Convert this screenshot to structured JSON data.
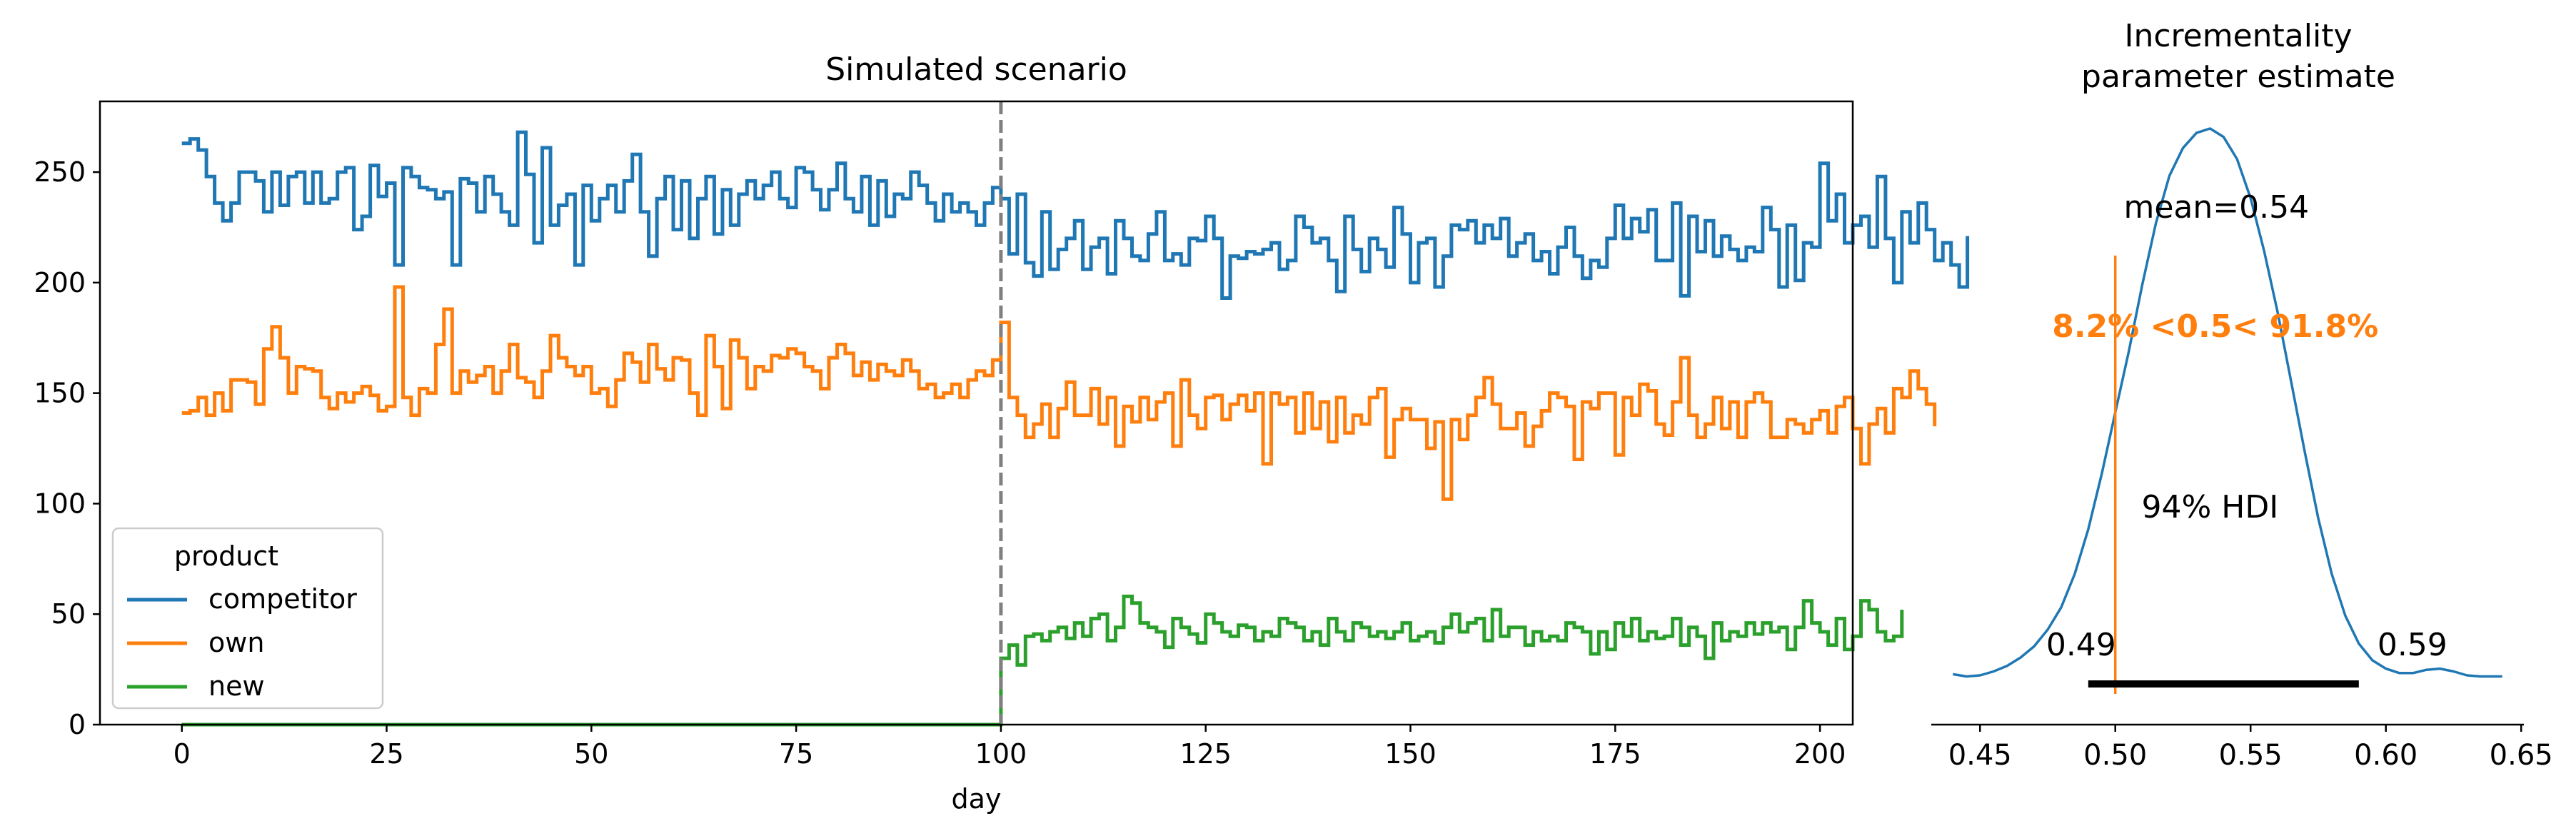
{
  "colors": {
    "competitor": "#1f77b4",
    "own": "#ff7f0e",
    "new": "#2ca02c",
    "vline": "#808080",
    "hdi": "#000000",
    "ref_text": "#ff7f0e"
  },
  "chart_data": [
    {
      "type": "line",
      "drawstyle": "steps",
      "title": "Simulated scenario",
      "xlabel": "day",
      "ylabel": "",
      "xlim": [
        -10,
        204
      ],
      "ylim": [
        0,
        282
      ],
      "xticks": [
        0,
        25,
        50,
        75,
        100,
        125,
        150,
        175,
        200
      ],
      "yticks": [
        0,
        50,
        100,
        150,
        200,
        250
      ],
      "grid": false,
      "intervention_day": 100,
      "legend": {
        "title": "product",
        "position": "lower-left"
      },
      "series": [
        {
          "name": "competitor",
          "x_start": 0,
          "values": [
            263,
            265,
            260,
            248,
            236,
            228,
            236,
            250,
            250,
            246,
            232,
            250,
            235,
            248,
            250,
            236,
            250,
            236,
            238,
            250,
            252,
            224,
            230,
            253,
            239,
            245,
            208,
            252,
            248,
            243,
            242,
            238,
            241,
            208,
            247,
            245,
            232,
            248,
            240,
            232,
            226,
            268,
            249,
            218,
            261,
            226,
            235,
            240,
            208,
            244,
            228,
            238,
            244,
            232,
            246,
            258,
            232,
            212,
            238,
            248,
            224,
            246,
            220,
            238,
            248,
            222,
            242,
            226,
            240,
            246,
            238,
            244,
            250,
            238,
            234,
            252,
            250,
            242,
            233,
            242,
            254,
            238,
            232,
            248,
            226,
            246,
            230,
            240,
            238,
            250,
            244,
            236,
            228,
            240,
            232,
            236,
            232,
            226,
            236,
            243,
            238,
            213,
            240,
            209,
            203,
            232,
            206,
            215,
            220,
            228,
            206,
            216,
            220,
            204,
            228,
            220,
            212,
            210,
            222,
            232,
            210,
            213,
            208,
            220,
            219,
            230,
            220,
            193,
            212,
            211,
            214,
            213,
            215,
            218,
            206,
            210,
            230,
            225,
            218,
            220,
            210,
            196,
            230,
            215,
            205,
            220,
            215,
            207,
            234,
            222,
            200,
            218,
            220,
            198,
            212,
            226,
            224,
            228,
            218,
            226,
            220,
            229,
            212,
            218,
            222,
            210,
            214,
            204,
            216,
            225,
            212,
            202,
            210,
            207,
            220,
            235,
            220,
            229,
            223,
            233,
            210,
            210,
            236,
            194,
            230,
            214,
            228,
            212,
            221,
            215,
            210,
            216,
            214,
            234,
            224,
            198,
            226,
            201,
            218,
            216,
            254,
            228,
            240,
            218,
            226,
            230,
            216,
            248,
            220,
            200,
            232,
            218,
            236,
            224,
            210,
            218,
            208,
            198,
            221
          ]
        },
        {
          "name": "own",
          "x_start": 0,
          "values": [
            141,
            142,
            148,
            140,
            150,
            142,
            156,
            156,
            155,
            145,
            170,
            180,
            166,
            150,
            162,
            161,
            160,
            148,
            143,
            150,
            146,
            150,
            153,
            149,
            142,
            144,
            198,
            148,
            140,
            152,
            150,
            172,
            188,
            150,
            160,
            155,
            158,
            162,
            150,
            160,
            172,
            157,
            155,
            148,
            160,
            176,
            166,
            162,
            158,
            162,
            150,
            152,
            144,
            156,
            168,
            164,
            155,
            172,
            161,
            156,
            166,
            165,
            150,
            140,
            176,
            162,
            143,
            174,
            166,
            152,
            162,
            160,
            167,
            166,
            170,
            168,
            162,
            160,
            152,
            166,
            172,
            168,
            158,
            164,
            156,
            163,
            160,
            158,
            165,
            160,
            152,
            154,
            148,
            150,
            154,
            148,
            156,
            160,
            158,
            165,
            182,
            148,
            140,
            130,
            136,
            145,
            130,
            143,
            155,
            140,
            140,
            152,
            136,
            148,
            126,
            144,
            137,
            148,
            138,
            146,
            150,
            126,
            156,
            140,
            134,
            148,
            149,
            138,
            145,
            149,
            142,
            150,
            118,
            150,
            145,
            148,
            132,
            150,
            134,
            146,
            128,
            148,
            132,
            140,
            136,
            148,
            152,
            121,
            138,
            143,
            138,
            138,
            125,
            137,
            102,
            138,
            129,
            140,
            148,
            157,
            145,
            134,
            134,
            141,
            126,
            135,
            142,
            150,
            148,
            144,
            120,
            146,
            143,
            150,
            150,
            122,
            148,
            140,
            154,
            151,
            136,
            131,
            146,
            166,
            140,
            130,
            136,
            148,
            134,
            146,
            130,
            146,
            150,
            146,
            130,
            130,
            138,
            136,
            132,
            138,
            142,
            132,
            144,
            148,
            134,
            118,
            136,
            143,
            132,
            152,
            148,
            160,
            152,
            145,
            135
          ]
        },
        {
          "name": "new",
          "x_start": 0,
          "values": [
            0,
            0,
            0,
            0,
            0,
            0,
            0,
            0,
            0,
            0,
            0,
            0,
            0,
            0,
            0,
            0,
            0,
            0,
            0,
            0,
            0,
            0,
            0,
            0,
            0,
            0,
            0,
            0,
            0,
            0,
            0,
            0,
            0,
            0,
            0,
            0,
            0,
            0,
            0,
            0,
            0,
            0,
            0,
            0,
            0,
            0,
            0,
            0,
            0,
            0,
            0,
            0,
            0,
            0,
            0,
            0,
            0,
            0,
            0,
            0,
            0,
            0,
            0,
            0,
            0,
            0,
            0,
            0,
            0,
            0,
            0,
            0,
            0,
            0,
            0,
            0,
            0,
            0,
            0,
            0,
            0,
            0,
            0,
            0,
            0,
            0,
            0,
            0,
            0,
            0,
            0,
            0,
            0,
            0,
            0,
            0,
            0,
            0,
            0,
            0,
            30,
            36,
            27,
            40,
            41,
            38,
            42,
            44,
            39,
            46,
            40,
            48,
            50,
            38,
            44,
            58,
            55,
            46,
            44,
            42,
            35,
            48,
            44,
            41,
            37,
            50,
            46,
            42,
            40,
            45,
            44,
            38,
            42,
            40,
            48,
            46,
            44,
            38,
            42,
            36,
            48,
            42,
            38,
            46,
            44,
            40,
            42,
            39,
            42,
            46,
            38,
            40,
            42,
            37,
            44,
            50,
            42,
            46,
            48,
            38,
            52,
            40,
            44,
            44,
            36,
            42,
            38,
            40,
            38,
            46,
            44,
            42,
            32,
            42,
            34,
            46,
            40,
            48,
            38,
            42,
            39,
            40,
            48,
            36,
            44,
            40,
            30,
            46,
            38,
            42,
            40,
            46,
            41,
            46,
            42,
            44,
            34,
            44,
            56,
            46,
            42,
            36,
            48,
            34,
            40,
            56,
            52,
            42,
            38,
            40,
            52
          ]
        }
      ]
    },
    {
      "type": "area",
      "subtype": "density",
      "title": "Incrementality\nparameter estimate",
      "title_lines": [
        "Incrementality",
        "parameter estimate"
      ],
      "xlim": [
        0.432,
        0.651
      ],
      "xticks": [
        0.45,
        0.5,
        0.55,
        0.6,
        0.65
      ],
      "xticklabels": [
        "0.45",
        "0.50",
        "0.55",
        "0.60",
        "0.65"
      ],
      "y_axis_visible": false,
      "ylim": [
        0,
        1.0
      ],
      "density": {
        "x": [
          0.44,
          0.445,
          0.45,
          0.455,
          0.46,
          0.465,
          0.47,
          0.475,
          0.48,
          0.485,
          0.49,
          0.495,
          0.5,
          0.505,
          0.51,
          0.515,
          0.52,
          0.525,
          0.53,
          0.535,
          0.54,
          0.545,
          0.55,
          0.555,
          0.56,
          0.565,
          0.57,
          0.575,
          0.58,
          0.585,
          0.59,
          0.595,
          0.6,
          0.605,
          0.61,
          0.615,
          0.62,
          0.625,
          0.63,
          0.635,
          0.643
        ],
        "y": [
          0.02,
          0.016,
          0.018,
          0.025,
          0.035,
          0.05,
          0.07,
          0.1,
          0.14,
          0.2,
          0.28,
          0.38,
          0.49,
          0.6,
          0.72,
          0.83,
          0.915,
          0.965,
          0.992,
          1.0,
          0.985,
          0.945,
          0.875,
          0.78,
          0.67,
          0.545,
          0.42,
          0.3,
          0.2,
          0.125,
          0.075,
          0.045,
          0.03,
          0.022,
          0.022,
          0.028,
          0.03,
          0.025,
          0.018,
          0.016,
          0.016
        ]
      },
      "mean": 0.54,
      "mean_label": "mean=0.54",
      "reference_value": 0.5,
      "reference_label": "8.2% <0.5< 91.8%",
      "hdi_label": "94% HDI",
      "hdi": [
        0.49,
        0.59
      ],
      "hdi_labels": [
        "0.49",
        "0.59"
      ]
    }
  ]
}
